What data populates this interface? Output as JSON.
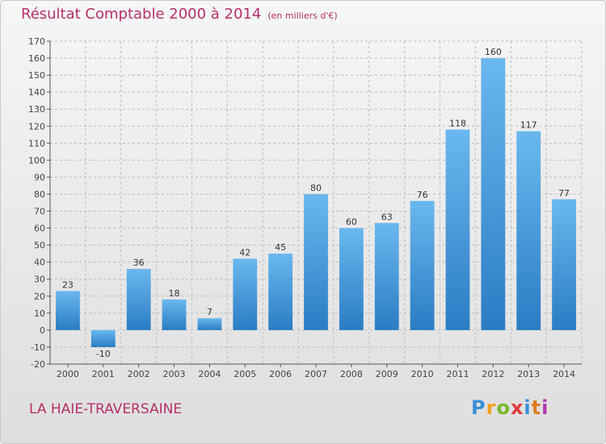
{
  "header": {
    "title": "Résultat Comptable 2000 à 2014",
    "subtitle": "(en milliers d'€)"
  },
  "footer": {
    "place": "LA HAIE-TRAVERSAINE",
    "logo_letters": [
      "P",
      "r",
      "o",
      "x",
      "i",
      "t",
      "i"
    ]
  },
  "colors": {
    "title": "#b5306b",
    "bar_top": "#6ab8ef",
    "bar_bottom": "#2b7cc4",
    "grid": "#bdbdbd"
  },
  "chart_data": {
    "type": "bar",
    "title": "Résultat Comptable 2000 à 2014",
    "xlabel": "",
    "ylabel": "",
    "categories": [
      "2000",
      "2001",
      "2002",
      "2003",
      "2004",
      "2005",
      "2006",
      "2007",
      "2008",
      "2009",
      "2010",
      "2011",
      "2012",
      "2013",
      "2014"
    ],
    "values": [
      23,
      -10,
      36,
      18,
      7,
      42,
      45,
      80,
      60,
      63,
      76,
      118,
      160,
      117,
      77
    ],
    "ylim": [
      -20,
      170
    ],
    "yticks": [
      -20,
      -10,
      0,
      10,
      20,
      30,
      40,
      50,
      60,
      70,
      80,
      90,
      100,
      110,
      120,
      130,
      140,
      150,
      160,
      170
    ],
    "grid": "horizontal dashed",
    "legend": "none"
  }
}
